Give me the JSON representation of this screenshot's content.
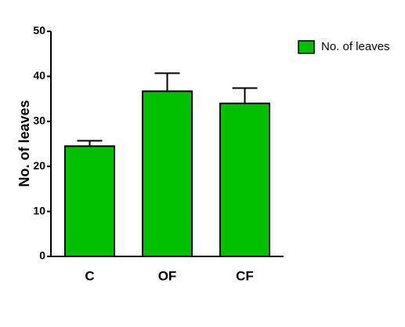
{
  "chart_data": {
    "type": "bar",
    "y_label": "No. of leaves",
    "categories": [
      "C",
      "OF",
      "CF"
    ],
    "series": [
      {
        "name": "No. of leaves",
        "color": "#00c000",
        "values": [
          24.5,
          36.7,
          34.0
        ],
        "errors": [
          1.2,
          4.0,
          3.4
        ]
      }
    ],
    "ylim": [
      0,
      50
    ],
    "yticks": [
      0,
      10,
      20,
      30,
      40,
      50
    ],
    "legend": "top-right"
  }
}
